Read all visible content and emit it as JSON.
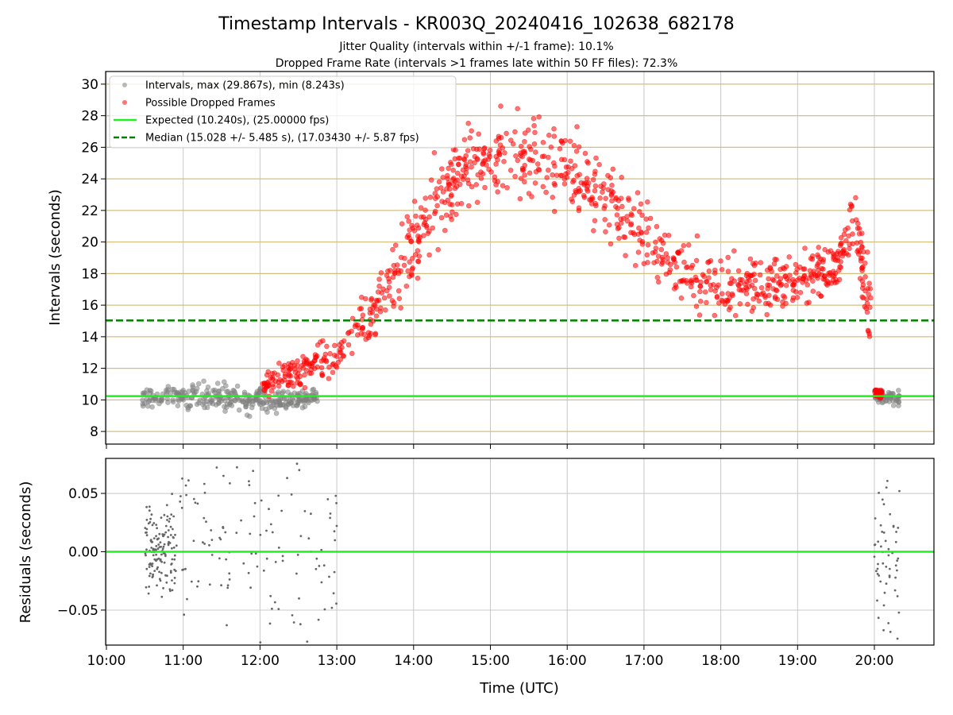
{
  "title": "Timestamp Intervals - KR003Q_20240416_102638_682178",
  "subtitle_1": "Jitter Quality (intervals within +/-1 frame): 10.1%",
  "subtitle_2": "Dropped Frame Rate (intervals >1 frames late within 50 FF files): 72.3%",
  "colors": {
    "interval_points": "#808080",
    "dropped_points": "#ff0000",
    "expected_line": "#22ee22",
    "median_line": "#008000",
    "grid": "#c8c8c8",
    "y_gridlines_top": "#d4bf7e"
  },
  "chart_data": [
    {
      "type": "scatter",
      "panel": "top",
      "xlabel": "",
      "ylabel": "Intervals (seconds)",
      "xlim": [
        "10:00",
        "20:48"
      ],
      "ylim": [
        7.2,
        30.8
      ],
      "yticks": [
        8,
        10,
        12,
        14,
        16,
        18,
        20,
        22,
        24,
        26,
        28,
        30
      ],
      "xticks": [
        "10:00",
        "11:00",
        "12:00",
        "13:00",
        "14:00",
        "15:00",
        "16:00",
        "17:00",
        "18:00",
        "19:00",
        "20:00"
      ],
      "grid": true,
      "legend_position": "top-left",
      "legend": [
        "Intervals, max (29.867s), min (8.243s)",
        "Possible Dropped Frames",
        "Expected (10.240s), (25.00000 fps)",
        "Median (15.028 +/- 5.485 s), (17.03430 +/- 5.87 fps)"
      ],
      "reference_lines": [
        {
          "name": "Expected (10.240s), (25.00000 fps)",
          "y": 10.24,
          "style": "solid"
        },
        {
          "name": "Median (15.028 +/- 5.485 s), (17.03430 +/- 5.87 fps)",
          "y": 15.028,
          "style": "dashed"
        }
      ],
      "series": [
        {
          "name": "Intervals, max (29.867s), min (8.243s)",
          "description_points": "trend samples (time, seconds, spread)",
          "trend": [
            [
              "10:30",
              10.2,
              0.5
            ],
            [
              "11:00",
              10.2,
              0.6
            ],
            [
              "11:30",
              10.1,
              0.8
            ],
            [
              "12:00",
              10.0,
              0.9
            ],
            [
              "12:30",
              10.1,
              0.5
            ],
            [
              "13:00",
              10.2,
              0.3
            ],
            [
              "20:00",
              10.2,
              0.4
            ],
            [
              "20:20",
              10.2,
              0.4
            ]
          ],
          "max": 29.867,
          "min": 8.243
        },
        {
          "name": "Possible Dropped Frames",
          "trend": [
            [
              "12:00",
              10.8,
              0.5
            ],
            [
              "12:30",
              11.8,
              1.0
            ],
            [
              "13:00",
              12.8,
              1.2
            ],
            [
              "13:30",
              15.5,
              1.5
            ],
            [
              "14:00",
              20.0,
              2.0
            ],
            [
              "14:30",
              24.0,
              2.3
            ],
            [
              "15:00",
              25.5,
              2.3
            ],
            [
              "15:30",
              25.2,
              2.3
            ],
            [
              "16:00",
              24.8,
              2.3
            ],
            [
              "16:30",
              22.5,
              2.2
            ],
            [
              "17:00",
              20.5,
              2.0
            ],
            [
              "17:30",
              18.0,
              1.8
            ],
            [
              "18:00",
              17.2,
              1.7
            ],
            [
              "18:30",
              17.3,
              1.7
            ],
            [
              "19:00",
              17.8,
              1.6
            ],
            [
              "19:30",
              18.3,
              1.6
            ],
            [
              "19:45",
              21.5,
              1.6
            ],
            [
              "19:55",
              16.5,
              2.0
            ],
            [
              "20:05",
              10.5,
              0.3
            ]
          ]
        }
      ]
    },
    {
      "type": "scatter",
      "panel": "bottom",
      "xlabel": "Time (UTC)",
      "ylabel": "Residuals (seconds)",
      "xlim": [
        "10:00",
        "20:48"
      ],
      "ylim": [
        -0.08,
        0.08
      ],
      "yticks": [
        -0.05,
        0.0,
        0.05
      ],
      "ytick_labels": [
        "−0.05",
        "0.00",
        "0.05"
      ],
      "xticks": [
        "10:00",
        "11:00",
        "12:00",
        "13:00",
        "14:00",
        "15:00",
        "16:00",
        "17:00",
        "18:00",
        "19:00",
        "20:00"
      ],
      "grid": true,
      "reference_lines": [
        {
          "y": 0.0,
          "style": "solid"
        }
      ],
      "series": [
        {
          "name": "",
          "clusters": [
            [
              "10:30",
              "13:00"
            ],
            [
              "20:00",
              "20:20"
            ]
          ]
        }
      ]
    }
  ]
}
